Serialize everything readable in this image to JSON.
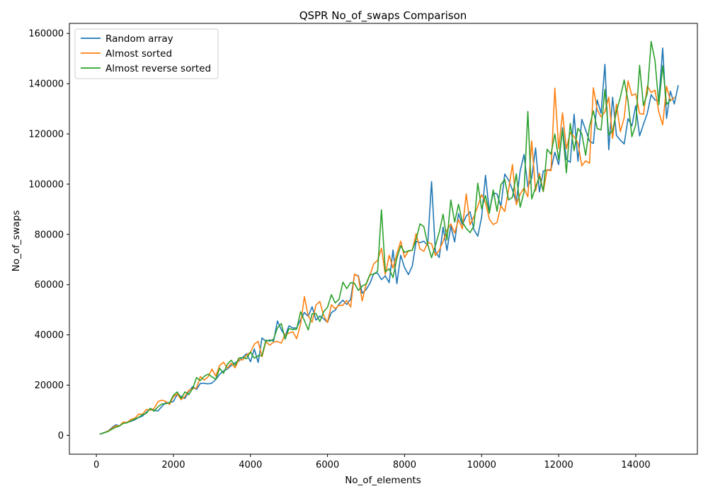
{
  "chart_data": {
    "type": "line",
    "title": "QSPR No_of_swaps Comparison",
    "xlabel": "No_of_elements",
    "ylabel": "No_of_swaps",
    "xlim": [
      -700,
      15600
    ],
    "ylim": [
      -7500,
      164000
    ],
    "xticks": [
      0,
      2000,
      4000,
      6000,
      8000,
      10000,
      12000,
      14000
    ],
    "yticks": [
      0,
      20000,
      40000,
      60000,
      80000,
      100000,
      120000,
      140000,
      160000
    ],
    "xtick_labels": [
      "0",
      "2000",
      "4000",
      "6000",
      "8000",
      "10000",
      "12000",
      "14000"
    ],
    "ytick_labels": [
      "0",
      "20000",
      "40000",
      "60000",
      "80000",
      "100000",
      "120000",
      "140000",
      "160000"
    ],
    "grid": false,
    "legend_position": "upper-left",
    "x_start": 100,
    "x_step": 100,
    "series": [
      {
        "name": "Random array",
        "color": "#1f77b4",
        "values": [
          500,
          1100,
          1700,
          3000,
          4200,
          3800,
          5000,
          5200,
          5600,
          6200,
          7100,
          7700,
          9200,
          10600,
          10000,
          9700,
          11500,
          13000,
          13000,
          13500,
          16300,
          15500,
          14700,
          17500,
          19400,
          18300,
          20700,
          20700,
          20500,
          20800,
          22200,
          24300,
          25600,
          26400,
          27800,
          28900,
          29600,
          31100,
          32500,
          29300,
          34400,
          29000,
          38800,
          37400,
          38000,
          37500,
          45500,
          42100,
          39600,
          43600,
          42700,
          42800,
          46000,
          48900,
          47400,
          51200,
          45900,
          47500,
          46400,
          45000,
          48900,
          49800,
          52300,
          53800,
          52100,
          54200,
          64000,
          63500,
          56600,
          58000,
          60500,
          64400,
          64600,
          62000,
          63500,
          60800,
          73800,
          60400,
          71700,
          66800,
          64000,
          67400,
          77200,
          76700,
          77300,
          75600,
          101000,
          73200,
          70800,
          82900,
          73600,
          83300,
          77000,
          88300,
          83800,
          87300,
          89000,
          81900,
          79300,
          86800,
          103500,
          89100,
          96500,
          96100,
          91100,
          104000,
          101600,
          97700,
          92600,
          105200,
          111800,
          98900,
          102500,
          114400,
          96900,
          105200,
          105600,
          105800,
          112700,
          107800,
          122500,
          109800,
          108700,
          127800,
          109100,
          125800,
          121600,
          117100,
          116200,
          133500,
          128200,
          147700,
          113700,
          134600,
          119400,
          117500,
          116000,
          126100,
          123200,
          131200,
          119200,
          123800,
          128200,
          135600,
          133500,
          133300,
          154200,
          126200,
          137000,
          131900,
          139200
        ]
      },
      {
        "name": "Almost sorted",
        "color": "#ff7f0e",
        "values": [
          500,
          1000,
          1700,
          2700,
          3800,
          3800,
          5300,
          5100,
          6400,
          6800,
          8500,
          8400,
          10300,
          10000,
          10700,
          13400,
          14000,
          13500,
          12300,
          15400,
          16500,
          14200,
          15500,
          17900,
          18600,
          18800,
          23400,
          22000,
          23300,
          26400,
          23600,
          27800,
          29100,
          26700,
          28700,
          26900,
          30200,
          30000,
          32000,
          33100,
          36300,
          37400,
          31300,
          37300,
          35900,
          37100,
          37400,
          36700,
          40200,
          40700,
          41200,
          38500,
          44200,
          55200,
          47500,
          45000,
          51900,
          53300,
          47700,
          44900,
          52000,
          50400,
          51800,
          51800,
          53700,
          51100,
          64200,
          63200,
          53500,
          60000,
          63700,
          68300,
          69700,
          74500,
          64000,
          71700,
          66500,
          72300,
          77300,
          70800,
          73400,
          73600,
          80300,
          74200,
          73300,
          76800,
          76300,
          71600,
          73700,
          77200,
          81700,
          84200,
          80600,
          85900,
          82200,
          96100,
          83800,
          87100,
          91200,
          95800,
          92800,
          86100,
          83900,
          84800,
          91400,
          89100,
          97800,
          107800,
          91800,
          96000,
          98500,
          95000,
          117200,
          97300,
          104300,
          97000,
          105800,
          105300,
          138200,
          114100,
          128400,
          114100,
          120500,
          118900,
          116500,
          107300,
          109300,
          108300,
          138400,
          129600,
          126800,
          128800,
          134600,
          118200,
          131900,
          120900,
          126400,
          141100,
          135300,
          136000,
          128100,
          127800,
          139100,
          136500,
          137400,
          128700,
          123600,
          139000,
          133200,
          134500
        ]
      },
      {
        "name": "Almost reverse sorted",
        "color": "#2ca02c",
        "values": [
          500,
          1000,
          1500,
          2400,
          3200,
          3700,
          4800,
          5000,
          5800,
          6500,
          7200,
          8300,
          8800,
          10800,
          9600,
          11400,
          12500,
          12600,
          12900,
          16000,
          17300,
          14700,
          17300,
          16200,
          18600,
          23000,
          21800,
          23500,
          24400,
          23300,
          22300,
          26700,
          24700,
          28300,
          29900,
          27800,
          30800,
          31000,
          30500,
          33200,
          30700,
          31700,
          31800,
          37900,
          37500,
          38300,
          42800,
          44500,
          38300,
          42500,
          42100,
          42300,
          49200,
          45700,
          42000,
          48400,
          48500,
          45300,
          49200,
          51000,
          56000,
          52700,
          54200,
          61000,
          58400,
          60800,
          60500,
          57700,
          59400,
          60300,
          64000,
          64100,
          65400,
          89800,
          65100,
          66300,
          62800,
          70500,
          75500,
          72800,
          73500,
          73700,
          78000,
          84200,
          83100,
          76100,
          70700,
          75500,
          80900,
          88000,
          77700,
          93700,
          84900,
          92000,
          84900,
          82400,
          80700,
          83400,
          100400,
          90200,
          95500,
          88400,
          97700,
          89200,
          99800,
          101900,
          93700,
          94800,
          104100,
          90800,
          96800,
          128900,
          94100,
          98700,
          103100,
          97200,
          113900,
          111900,
          120000,
          109700,
          121800,
          104500,
          124200,
          113300,
          122200,
          120100,
          111500,
          122900,
          129200,
          122100,
          121600,
          137700,
          119600,
          121200,
          128900,
          134600,
          141500,
          133000,
          118900,
          123600,
          147300,
          131300,
          136100,
          156800,
          149200,
          131600,
          147200,
          131700,
          133600
        ]
      }
    ]
  }
}
